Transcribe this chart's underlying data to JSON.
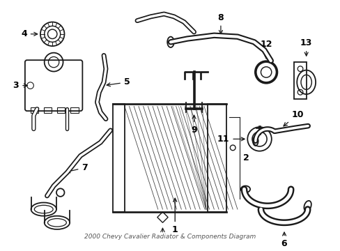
{
  "title": "2000 Chevy Cavalier Radiator & Components Diagram",
  "background_color": "#ffffff",
  "line_color": "#1a1a1a",
  "figsize": [
    4.89,
    3.6
  ],
  "dpi": 100
}
